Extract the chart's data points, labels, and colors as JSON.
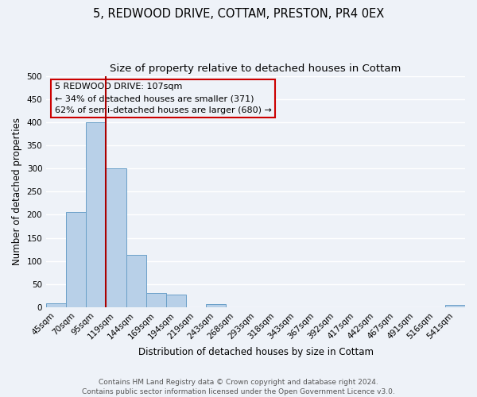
{
  "title": "5, REDWOOD DRIVE, COTTAM, PRESTON, PR4 0EX",
  "subtitle": "Size of property relative to detached houses in Cottam",
  "xlabel": "Distribution of detached houses by size in Cottam",
  "ylabel": "Number of detached properties",
  "bar_color": "#b8d0e8",
  "bar_edge_color": "#6aa0c8",
  "categories": [
    "45sqm",
    "70sqm",
    "95sqm",
    "119sqm",
    "144sqm",
    "169sqm",
    "194sqm",
    "219sqm",
    "243sqm",
    "268sqm",
    "293sqm",
    "318sqm",
    "343sqm",
    "367sqm",
    "392sqm",
    "417sqm",
    "442sqm",
    "467sqm",
    "491sqm",
    "516sqm",
    "541sqm"
  ],
  "values": [
    8,
    205,
    400,
    300,
    113,
    30,
    27,
    0,
    7,
    0,
    0,
    0,
    0,
    0,
    0,
    0,
    0,
    0,
    0,
    0,
    5
  ],
  "ylim": [
    0,
    500
  ],
  "yticks": [
    0,
    50,
    100,
    150,
    200,
    250,
    300,
    350,
    400,
    450,
    500
  ],
  "vline_color": "#aa0000",
  "annotation_box_text": "5 REDWOOD DRIVE: 107sqm\n← 34% of detached houses are smaller (371)\n62% of semi-detached houses are larger (680) →",
  "annotation_box_color": "#cc0000",
  "footer_line1": "Contains HM Land Registry data © Crown copyright and database right 2024.",
  "footer_line2": "Contains public sector information licensed under the Open Government Licence v3.0.",
  "background_color": "#eef2f8",
  "grid_color": "#ffffff",
  "title_fontsize": 10.5,
  "subtitle_fontsize": 9.5,
  "axis_label_fontsize": 8.5,
  "tick_fontsize": 7.5,
  "footer_fontsize": 6.5,
  "annot_fontsize": 8
}
